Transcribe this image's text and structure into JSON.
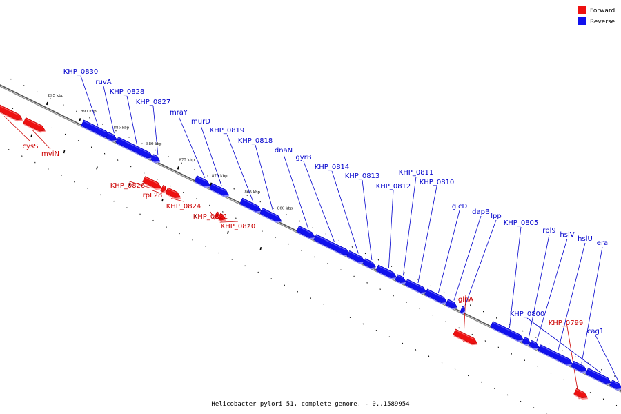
{
  "caption": "Helicobacter pylori 51, complete genome. - 0..1589954",
  "legend": {
    "forward_label": "Forward",
    "reverse_label": "Reverse"
  },
  "colors": {
    "forward": "#ee1111",
    "reverse": "#1111ee",
    "forward_label": "#cc0000",
    "reverse_label": "#0000cc",
    "backbone": "#888888"
  },
  "chart_data": {
    "type": "genome-map",
    "axis_unit": "kbp",
    "axis_ticks": [
      {
        "kbp": 895,
        "label": "895 kbp"
      },
      {
        "kbp": 890,
        "label": "890 kbp"
      },
      {
        "kbp": 885,
        "label": "885 kbp"
      },
      {
        "kbp": 880,
        "label": "880 kbp"
      },
      {
        "kbp": 875,
        "label": "875 kbp"
      },
      {
        "kbp": 870,
        "label": "870 kbp"
      },
      {
        "kbp": 865,
        "label": "865 kbp"
      },
      {
        "kbp": 860,
        "label": "860 kbp"
      }
    ],
    "genes": [
      {
        "name": "cysS",
        "strand": "forward"
      },
      {
        "name": "mviN",
        "strand": "forward"
      },
      {
        "name": "KHP_0830",
        "strand": "reverse"
      },
      {
        "name": "ruvA",
        "strand": "reverse"
      },
      {
        "name": "KHP_0828",
        "strand": "reverse"
      },
      {
        "name": "KHP_0827",
        "strand": "reverse"
      },
      {
        "name": "KHP_0826",
        "strand": "forward"
      },
      {
        "name": "rpL28",
        "strand": "forward"
      },
      {
        "name": "KHP_0824",
        "strand": "forward"
      },
      {
        "name": "mraY",
        "strand": "reverse"
      },
      {
        "name": "murD",
        "strand": "reverse"
      },
      {
        "name": "KHP_0821",
        "strand": "forward"
      },
      {
        "name": "KHP_0820",
        "strand": "forward"
      },
      {
        "name": "KHP_0819",
        "strand": "reverse"
      },
      {
        "name": "KHP_0818",
        "strand": "reverse"
      },
      {
        "name": "dnaN",
        "strand": "reverse"
      },
      {
        "name": "gyrB",
        "strand": "reverse"
      },
      {
        "name": "KHP_0814",
        "strand": "reverse"
      },
      {
        "name": "KHP_0813",
        "strand": "reverse"
      },
      {
        "name": "KHP_0812",
        "strand": "reverse"
      },
      {
        "name": "KHP_0811",
        "strand": "reverse"
      },
      {
        "name": "KHP_0810",
        "strand": "reverse"
      },
      {
        "name": "glcD",
        "strand": "reverse"
      },
      {
        "name": "dapB",
        "strand": "reverse"
      },
      {
        "name": "lpp",
        "strand": "reverse"
      },
      {
        "name": "glnA",
        "strand": "forward"
      },
      {
        "name": "KHP_0805",
        "strand": "reverse"
      },
      {
        "name": "rpl9",
        "strand": "reverse"
      },
      {
        "name": "hslV",
        "strand": "reverse"
      },
      {
        "name": "hslU",
        "strand": "reverse"
      },
      {
        "name": "era",
        "strand": "reverse"
      },
      {
        "name": "KHP_0800",
        "strand": "reverse"
      },
      {
        "name": "KHP_0799",
        "strand": "forward"
      },
      {
        "name": "cag1",
        "strand": "reverse"
      }
    ]
  }
}
